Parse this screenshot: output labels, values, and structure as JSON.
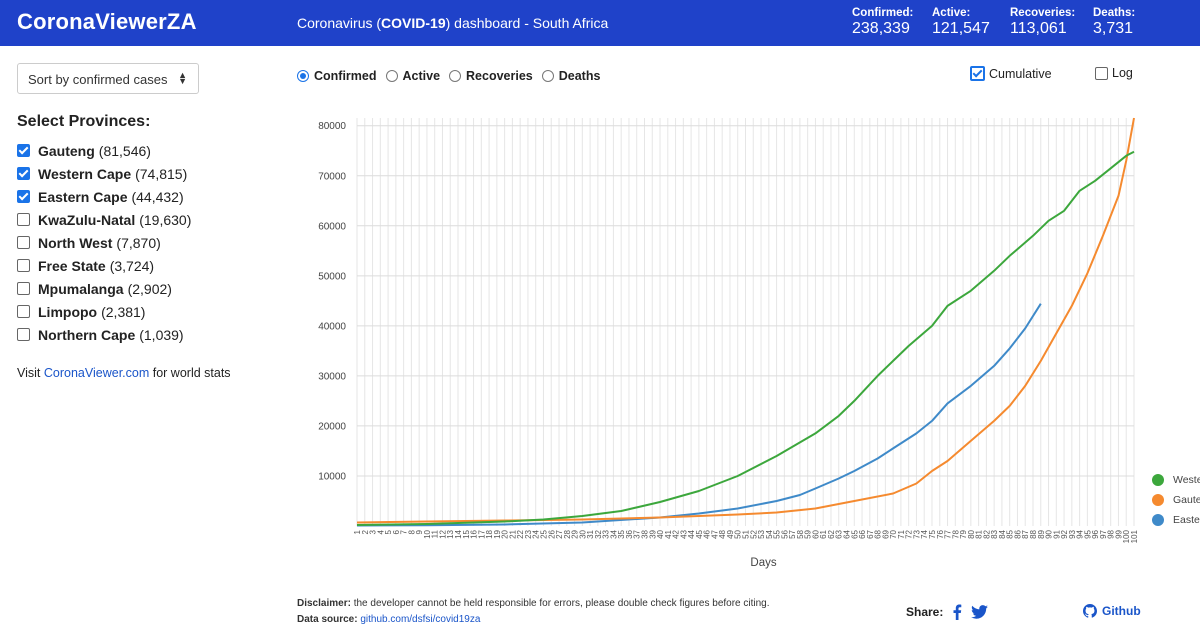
{
  "header": {
    "brand": "CoronaViewerZA",
    "subtitle_pre": "Coronavirus (",
    "subtitle_bold": "COVID-19",
    "subtitle_post": ") dashboard - South Africa",
    "stats": [
      {
        "label": "Confirmed:",
        "value": "238,339"
      },
      {
        "label": "Active:",
        "value": "121,547"
      },
      {
        "label": "Recoveries:",
        "value": "113,061"
      },
      {
        "label": "Deaths:",
        "value": "3,731"
      }
    ]
  },
  "sidebar": {
    "sort_label": "Sort by confirmed cases",
    "provinces_title": "Select Provinces:",
    "provinces": [
      {
        "name": "Gauteng",
        "count": "(81,546)",
        "checked": true
      },
      {
        "name": "Western Cape",
        "count": "(74,815)",
        "checked": true
      },
      {
        "name": "Eastern Cape",
        "count": "(44,432)",
        "checked": true
      },
      {
        "name": "KwaZulu-Natal",
        "count": "(19,630)",
        "checked": false
      },
      {
        "name": "North West",
        "count": "(7,870)",
        "checked": false
      },
      {
        "name": "Free State",
        "count": "(3,724)",
        "checked": false
      },
      {
        "name": "Mpumalanga",
        "count": "(2,902)",
        "checked": false
      },
      {
        "name": "Limpopo",
        "count": "(2,381)",
        "checked": false
      },
      {
        "name": "Northern Cape",
        "count": "(1,039)",
        "checked": false
      }
    ],
    "visit_pre": "Visit ",
    "visit_link": "CoronaViewer.com",
    "visit_post": " for world stats"
  },
  "controls": {
    "metrics": [
      {
        "label": "Confirmed",
        "selected": true
      },
      {
        "label": "Active",
        "selected": false
      },
      {
        "label": "Recoveries",
        "selected": false
      },
      {
        "label": "Deaths",
        "selected": false
      }
    ],
    "cumulative_label": "Cumulative",
    "cumulative_checked": true,
    "log_label": "Log",
    "log_checked": false
  },
  "chart_data": {
    "type": "line",
    "xlabel": "Days",
    "ylabel": "",
    "xlim": [
      1,
      101
    ],
    "ylim": [
      0,
      81546
    ],
    "yticks": [
      10000,
      20000,
      30000,
      40000,
      50000,
      60000,
      70000,
      80000
    ],
    "grid": true,
    "legend_position": "right",
    "series": [
      {
        "name": "Western Cape",
        "color": "#3ca73c",
        "points": [
          [
            1,
            200
          ],
          [
            10,
            400
          ],
          [
            20,
            900
          ],
          [
            25,
            1300
          ],
          [
            30,
            2000
          ],
          [
            35,
            3000
          ],
          [
            40,
            4800
          ],
          [
            45,
            7000
          ],
          [
            50,
            10000
          ],
          [
            55,
            14000
          ],
          [
            60,
            18500
          ],
          [
            63,
            22000
          ],
          [
            65,
            25000
          ],
          [
            68,
            30000
          ],
          [
            70,
            33000
          ],
          [
            72,
            36000
          ],
          [
            75,
            40000
          ],
          [
            77,
            44000
          ],
          [
            80,
            47000
          ],
          [
            83,
            51000
          ],
          [
            85,
            54000
          ],
          [
            88,
            58000
          ],
          [
            90,
            61000
          ],
          [
            92,
            63000
          ],
          [
            94,
            67000
          ],
          [
            96,
            69000
          ],
          [
            98,
            71500
          ],
          [
            100,
            74000
          ],
          [
            101,
            74815
          ]
        ]
      },
      {
        "name": "Gauteng",
        "color": "#f58a2f",
        "points": [
          [
            1,
            700
          ],
          [
            10,
            900
          ],
          [
            20,
            1100
          ],
          [
            30,
            1300
          ],
          [
            40,
            1700
          ],
          [
            50,
            2300
          ],
          [
            55,
            2700
          ],
          [
            60,
            3500
          ],
          [
            65,
            5000
          ],
          [
            70,
            6500
          ],
          [
            73,
            8500
          ],
          [
            75,
            11000
          ],
          [
            77,
            13000
          ],
          [
            80,
            17000
          ],
          [
            83,
            21000
          ],
          [
            85,
            24000
          ],
          [
            87,
            28000
          ],
          [
            89,
            33000
          ],
          [
            91,
            38500
          ],
          [
            93,
            44000
          ],
          [
            95,
            50500
          ],
          [
            97,
            58000
          ],
          [
            99,
            66000
          ],
          [
            100,
            73000
          ],
          [
            101,
            81546
          ]
        ]
      },
      {
        "name": "Eastern Cape",
        "color": "#3f8ac9",
        "points": [
          [
            1,
            100
          ],
          [
            10,
            150
          ],
          [
            20,
            300
          ],
          [
            30,
            700
          ],
          [
            40,
            1700
          ],
          [
            45,
            2500
          ],
          [
            50,
            3500
          ],
          [
            55,
            5000
          ],
          [
            58,
            6200
          ],
          [
            60,
            7500
          ],
          [
            63,
            9500
          ],
          [
            65,
            11000
          ],
          [
            68,
            13500
          ],
          [
            70,
            15500
          ],
          [
            73,
            18500
          ],
          [
            75,
            21000
          ],
          [
            77,
            24500
          ],
          [
            80,
            28000
          ],
          [
            83,
            32000
          ],
          [
            85,
            35500
          ],
          [
            87,
            39500
          ],
          [
            89,
            44432
          ]
        ]
      }
    ]
  },
  "footer": {
    "disclaimer_label": "Disclaimer:",
    "disclaimer_text": " the developer cannot be held responsible for errors, please double check figures before citing.",
    "source_label": "Data source:",
    "source_link": "github.com/dsfsi/covid19za",
    "share_label": "Share:",
    "github_label": "Github"
  },
  "icons": {
    "facebook": "facebook-icon",
    "twitter": "twitter-icon",
    "github": "github-icon",
    "sort": "sort-arrows-icon"
  }
}
